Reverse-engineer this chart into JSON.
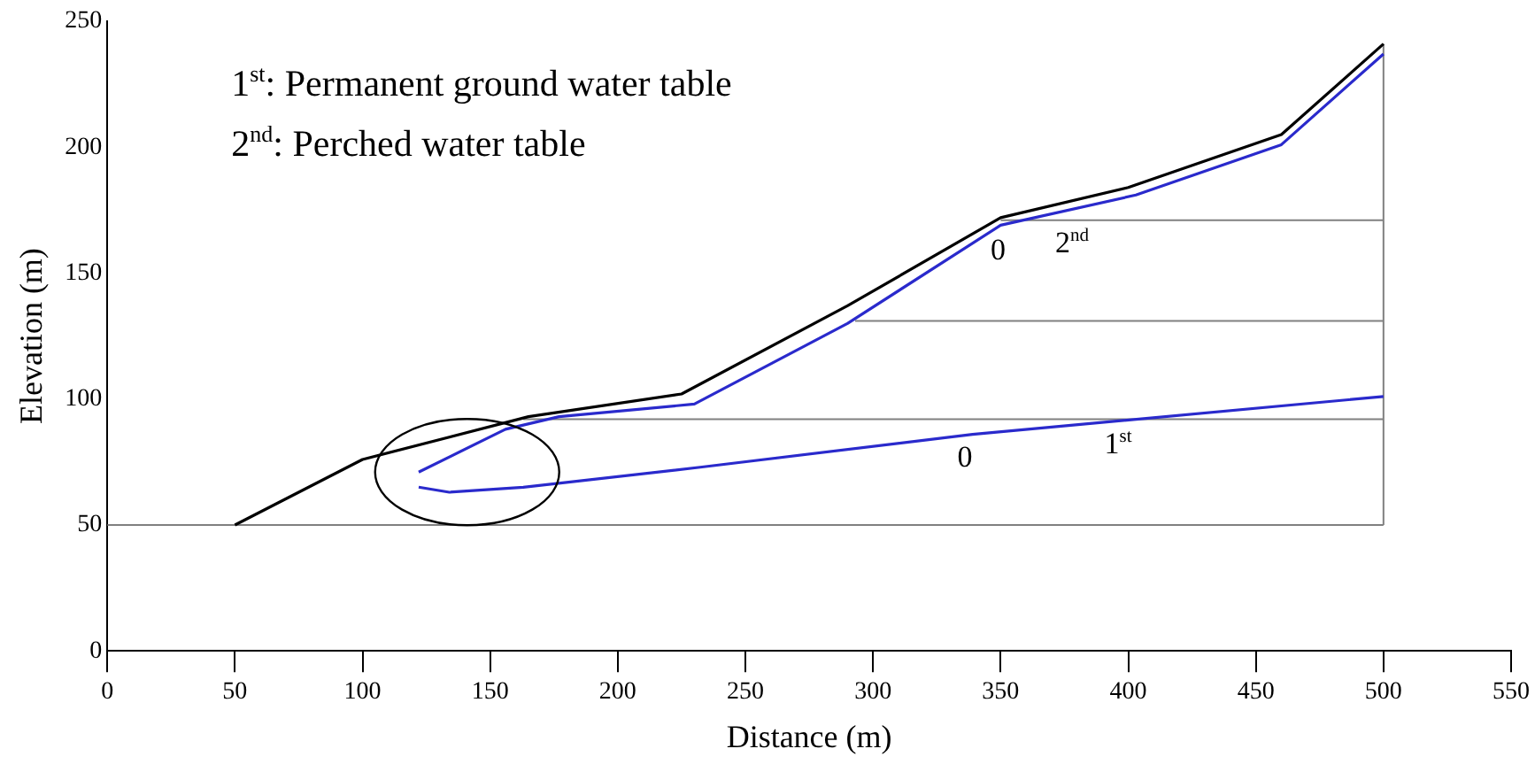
{
  "chart_data": {
    "type": "line",
    "xlabel": "Distance (m)",
    "ylabel": "Elevation (m)",
    "xlim": [
      0,
      550
    ],
    "xticks": [
      0,
      50,
      100,
      150,
      200,
      250,
      300,
      350,
      400,
      450,
      500,
      550
    ],
    "ylim": [
      0,
      250
    ],
    "yticks": [
      0,
      50,
      100,
      150,
      200,
      250
    ],
    "grid": false,
    "legend": false,
    "marker": "none",
    "line_style": "solid",
    "series": [
      {
        "color": "#000000",
        "x": [
          50,
          100,
          165,
          225,
          290,
          350,
          400,
          460,
          500
        ],
        "values": [
          50,
          76,
          93,
          102,
          137,
          172,
          184,
          205,
          241
        ]
      },
      {
        "color": "#2a2acc",
        "x": [
          122,
          156,
          177,
          230,
          290,
          350,
          403,
          460,
          500
        ],
        "values": [
          71,
          88,
          93,
          98,
          130,
          169,
          181,
          201,
          237
        ]
      },
      {
        "color": "#2a2acc",
        "x": [
          122,
          134,
          163,
          233,
          339,
          500
        ],
        "values": [
          65,
          63,
          65,
          73,
          86,
          101
        ]
      },
      {
        "color": "#808080",
        "x": [
          0,
          500
        ],
        "values": [
          50,
          50
        ]
      },
      {
        "color": "#808080",
        "x": [
          163,
          500
        ],
        "values": [
          92,
          92
        ]
      },
      {
        "color": "#808080",
        "x": [
          293,
          500
        ],
        "values": [
          131,
          131
        ]
      },
      {
        "color": "#808080",
        "x": [
          350,
          500
        ],
        "values": [
          171,
          171
        ]
      },
      {
        "color": "#808080",
        "x": [
          500,
          500
        ],
        "values": [
          50,
          241
        ]
      }
    ],
    "annotations": [
      "1$^{st}$: Permanent ground water table",
      "2$^{nd}$: Perched water table",
      {
        "text": "0",
        "x": 336,
        "y": 86
      },
      {
        "text": "1$^{st}$",
        "x": 396,
        "y": 91
      },
      {
        "text": "0",
        "x": 349,
        "y": 168
      },
      {
        "text": "2$^{nd}$",
        "x": 378,
        "y": 171
      }
    ]
  }
}
